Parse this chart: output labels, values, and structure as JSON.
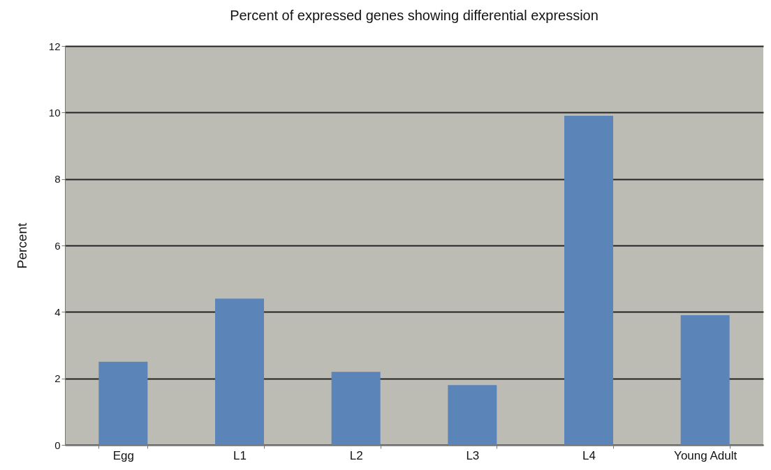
{
  "chart_data": {
    "type": "bar",
    "title": "Percent of expressed genes showing differential expression",
    "ylabel": "Percent",
    "categories": [
      "Egg",
      "L1",
      "L2",
      "L3",
      "L4",
      "Young Adult"
    ],
    "values": [
      2.5,
      4.4,
      2.2,
      1.8,
      9.9,
      3.9
    ],
    "color": "#5b84b8",
    "ylim": [
      0,
      12
    ],
    "yticks": [
      0,
      2,
      4,
      6,
      8,
      10,
      12
    ],
    "grid": "y"
  }
}
